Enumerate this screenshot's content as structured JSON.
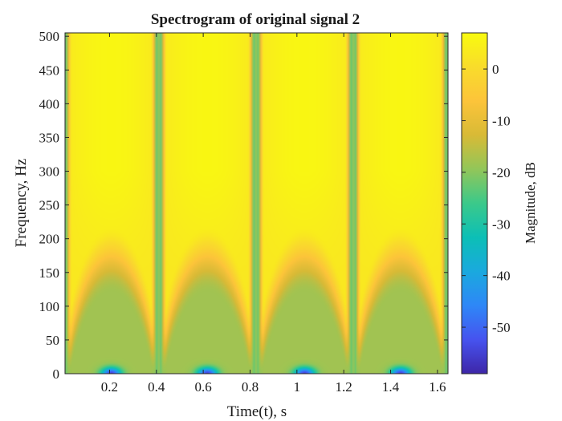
{
  "chart_data": {
    "type": "heatmap",
    "title": "Spectrogram of original signal 2",
    "xlabel": "Time(t), s",
    "ylabel": "Frequency, Hz",
    "colorbar_label": "Magnitude, dB",
    "xlim": [
      0.01,
      1.645
    ],
    "ylim": [
      0,
      505
    ],
    "xticks": [
      "0.2",
      "0.4",
      "0.6",
      "0.8",
      "1",
      "1.2",
      "1.4",
      "1.6"
    ],
    "xtick_values": [
      0.2,
      0.4,
      0.6,
      0.8,
      1.0,
      1.2,
      1.4,
      1.6
    ],
    "yticks": [
      "0",
      "50",
      "100",
      "150",
      "200",
      "250",
      "300",
      "350",
      "400",
      "450",
      "500"
    ],
    "ytick_values": [
      0,
      50,
      100,
      150,
      200,
      250,
      300,
      350,
      400,
      450,
      500
    ],
    "colorbar_ticks": [
      "0",
      "-10",
      "-20",
      "-30",
      "-40",
      "-50"
    ],
    "colorbar_tick_values": [
      0,
      -10,
      -20,
      -30,
      -40,
      -50
    ],
    "clim": [
      -59,
      7
    ],
    "colormap": "parula",
    "colormap_stops": [
      "#3e26a8",
      "#4653ef",
      "#2e87f7",
      "#1aa9de",
      "#0cbfb6",
      "#3bc98a",
      "#92c659",
      "#d8ba36",
      "#fcc43a",
      "#f9dc2b",
      "#f9fb0e"
    ],
    "bursts": [
      {
        "start": 0.02,
        "end": 0.395
      },
      {
        "start": 0.425,
        "end": 0.81
      },
      {
        "start": 0.84,
        "end": 1.225
      },
      {
        "start": 1.255,
        "end": 1.63
      }
    ],
    "gap_level_db": -20,
    "low_frequency_level_db": -18,
    "min_level_db": -57,
    "peak_level_db": 6,
    "grid": false
  }
}
